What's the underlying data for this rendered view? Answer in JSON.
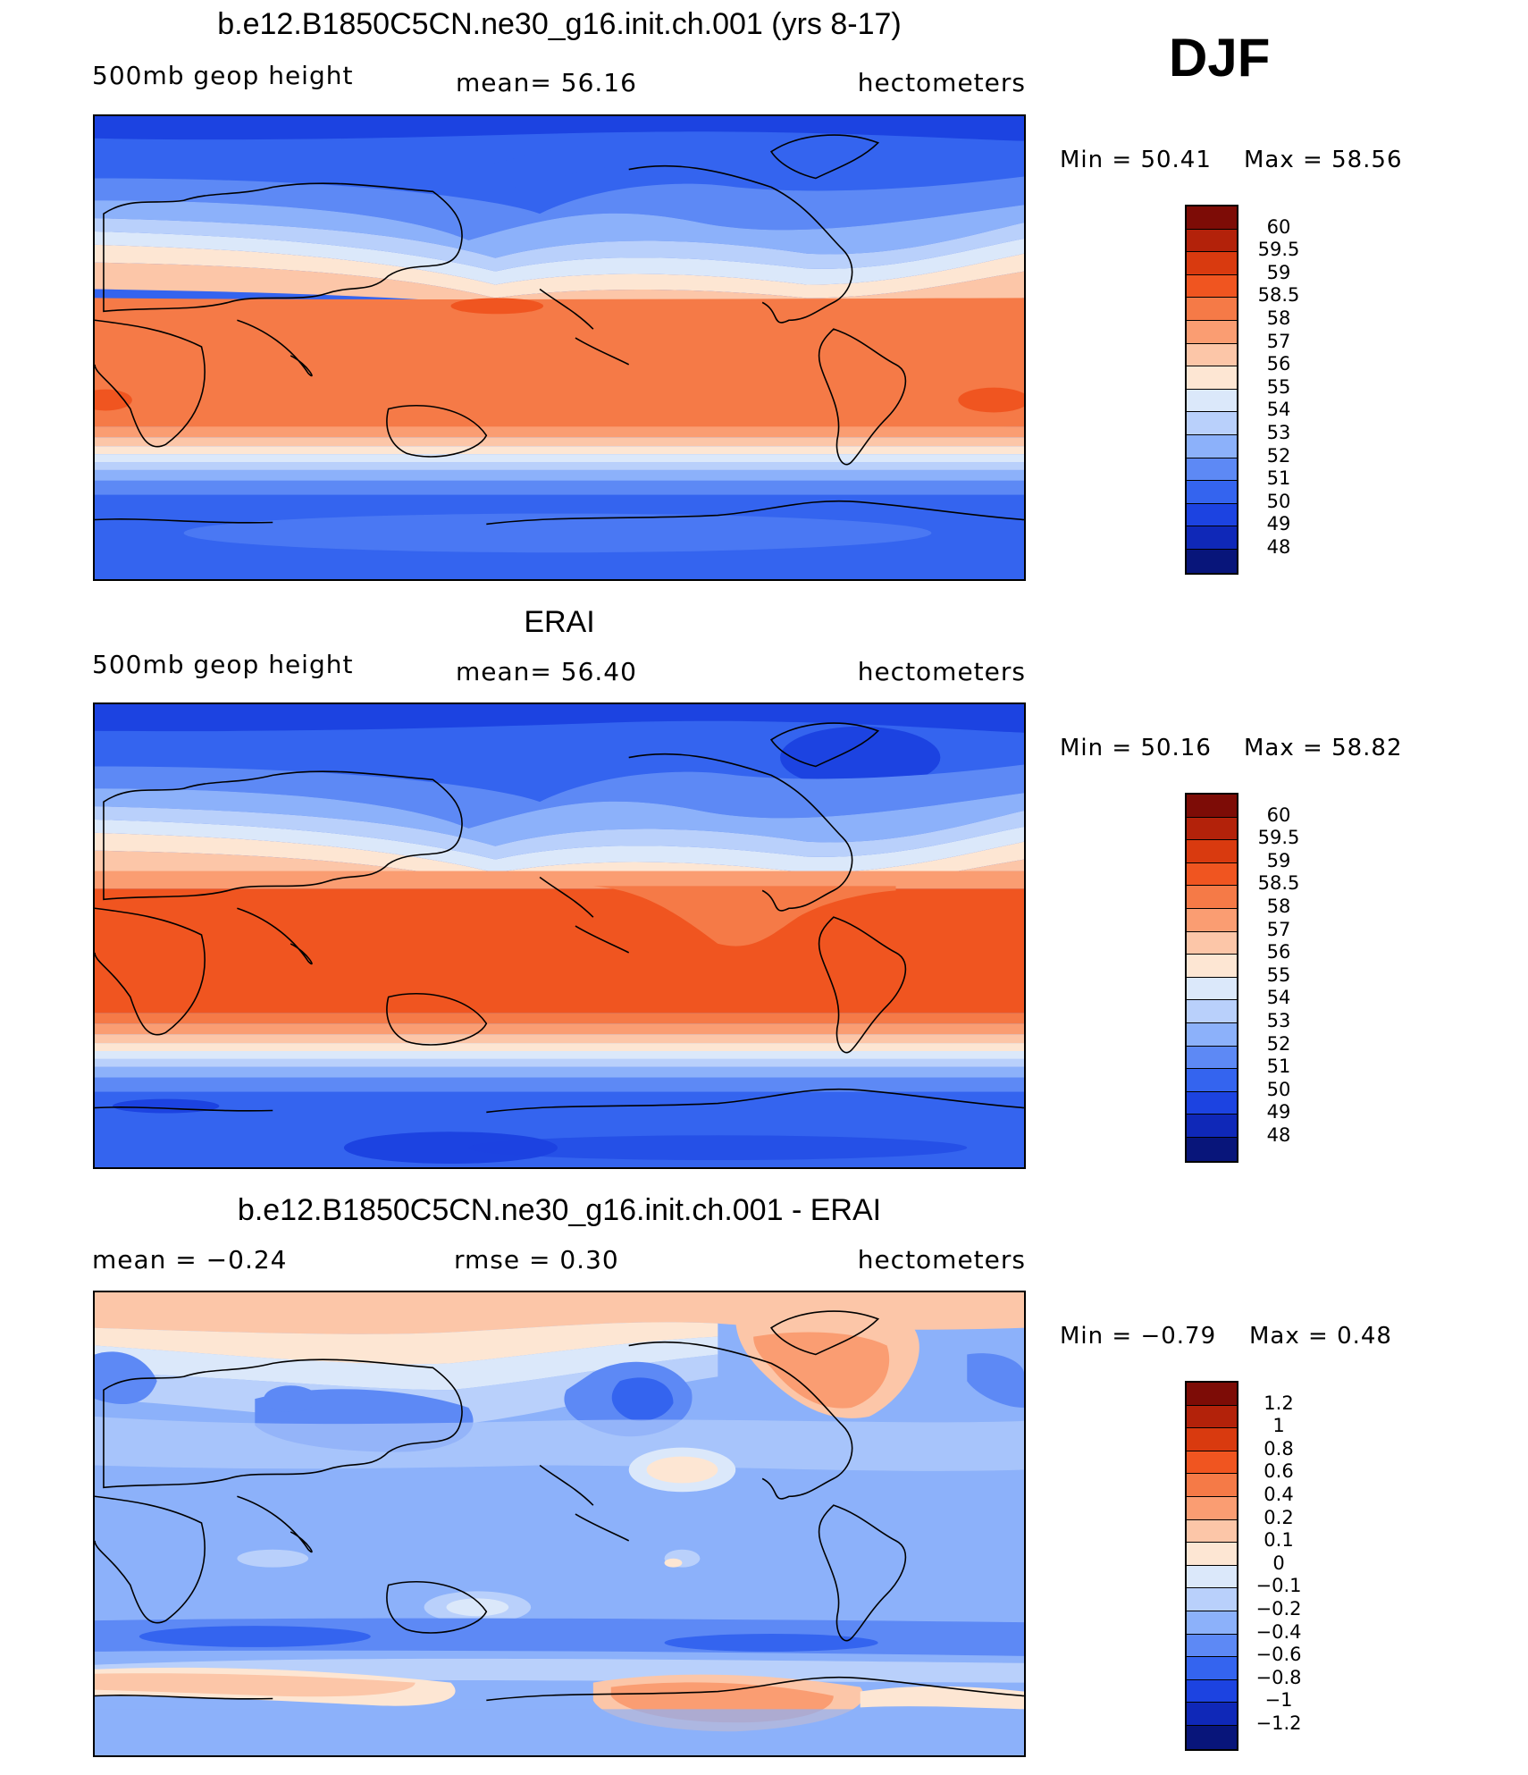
{
  "season": "DJF",
  "panels": [
    {
      "title": "b.e12.B1850C5CN.ne30_g16.init.ch.001 (yrs 8-17)",
      "left_label": "500mb geop height",
      "center_label": "mean=   56.16",
      "right_label": "hectometers",
      "min_label": "Min  =    50.41",
      "max_label": "Max  =    58.56",
      "min": 50.41,
      "max": 58.56,
      "mean": 56.16
    },
    {
      "title": "ERAI",
      "left_label": "500mb geop height",
      "center_label": "mean=   56.40",
      "right_label": "hectometers",
      "min_label": "Min  =    50.16",
      "max_label": "Max  =    58.82",
      "min": 50.16,
      "max": 58.82,
      "mean": 56.4
    },
    {
      "title": "b.e12.B1850C5CN.ne30_g16.init.ch.001 - ERAI",
      "left_label": "mean  =    −0.24",
      "center_label": "rmse  =     0.30",
      "right_label": "hectometers",
      "min_label": "Min  =   −0.79",
      "max_label": "Max  =     0.48",
      "min": -0.79,
      "max": 0.48,
      "mean": -0.24,
      "rmse": 0.3
    }
  ],
  "colorbars": {
    "height": {
      "levels": [
        "60",
        "59.5",
        "59",
        "58.5",
        "58",
        "57",
        "56",
        "55",
        "54",
        "53",
        "52",
        "51",
        "50",
        "49",
        "48"
      ],
      "colors": [
        "#7d0c06",
        "#b3220a",
        "#d93a0f",
        "#f05520",
        "#f57a47",
        "#fa9d72",
        "#fcc6a8",
        "#fde6d3",
        "#dbe8fa",
        "#b9d0fb",
        "#8cb1fa",
        "#5d89f5",
        "#3464ef",
        "#1c43e1",
        "#0f28b8",
        "#08157a"
      ]
    },
    "diff": {
      "levels": [
        "1.2",
        "1",
        "0.8",
        "0.6",
        "0.4",
        "0.2",
        "0.1",
        "0",
        "−0.1",
        "−0.2",
        "−0.4",
        "−0.6",
        "−0.8",
        "−1",
        "−1.2"
      ],
      "colors": [
        "#7d0c06",
        "#b3220a",
        "#d93a0f",
        "#f05520",
        "#f57a47",
        "#fa9d72",
        "#fcc6a8",
        "#fde6d3",
        "#dbe8fa",
        "#b9d0fb",
        "#8cb1fa",
        "#5d89f5",
        "#3464ef",
        "#1c43e1",
        "#0f28b8",
        "#08157a"
      ]
    }
  }
}
